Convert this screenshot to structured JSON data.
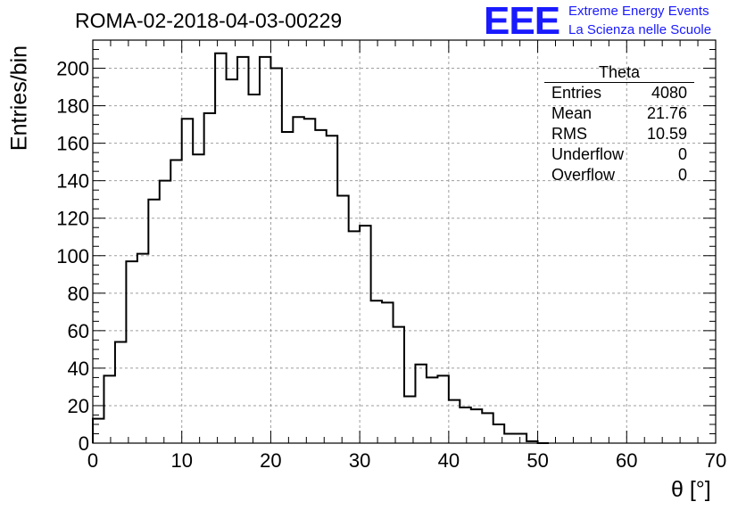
{
  "header": {
    "run_title": "ROMA-02-2018-04-03-00229",
    "logo_text": "EEE",
    "logo_line1": "Extreme Energy Events",
    "logo_line2": "La Scienza nelle Scuole"
  },
  "stats": {
    "title": "Theta",
    "rows": [
      {
        "label": "Entries",
        "value": "4080"
      },
      {
        "label": "Mean",
        "value": "21.76"
      },
      {
        "label": "RMS",
        "value": "10.59"
      },
      {
        "label": "Underflow",
        "value": "0"
      },
      {
        "label": "Overflow",
        "value": "0"
      }
    ]
  },
  "chart_data": {
    "type": "histogram",
    "title": "ROMA-02-2018-04-03-00229",
    "xlabel": "θ [°]",
    "ylabel": "Entries/bin",
    "xlim": [
      0,
      70
    ],
    "ylim": [
      0,
      215
    ],
    "bin_width": 1.25,
    "bin_start": 0,
    "values": [
      13,
      36,
      54,
      97,
      101,
      130,
      140,
      151,
      173,
      154,
      176,
      208,
      194,
      206,
      186,
      206,
      200,
      166,
      174,
      173,
      167,
      164,
      132,
      113,
      116,
      76,
      75,
      62,
      25,
      42,
      35,
      36,
      23,
      19,
      18,
      16,
      10,
      5,
      5,
      1,
      0
    ],
    "x_ticks": [
      0,
      10,
      20,
      30,
      40,
      50,
      60,
      70
    ],
    "y_ticks": [
      0,
      20,
      40,
      60,
      80,
      100,
      120,
      140,
      160,
      180,
      200
    ],
    "grid": true,
    "line_color": "#000000",
    "grid_color": "#9e9e9e"
  }
}
